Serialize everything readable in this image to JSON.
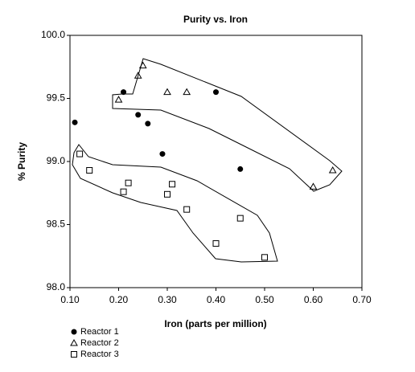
{
  "chart_data": {
    "type": "scatter",
    "title": "Purity vs. Iron",
    "x_label": "Iron (parts per million)",
    "y_label": "% Purity",
    "xlim": [
      0.1,
      0.7
    ],
    "ylim": [
      98.0,
      100.0
    ],
    "xticks": [
      {
        "value": 0.1,
        "label": "0.10"
      },
      {
        "value": 0.2,
        "label": "0.20"
      },
      {
        "value": 0.3,
        "label": "0.30"
      },
      {
        "value": 0.4,
        "label": "0.40"
      },
      {
        "value": 0.5,
        "label": "0.50"
      },
      {
        "value": 0.6,
        "label": "0.60"
      },
      {
        "value": 0.7,
        "label": "0.70"
      }
    ],
    "yticks": [
      {
        "value": 98.0,
        "label": "98.0"
      },
      {
        "value": 98.5,
        "label": "98.5"
      },
      {
        "value": 99.0,
        "label": "99.0"
      },
      {
        "value": 99.5,
        "label": "99.5"
      },
      {
        "value": 100.0,
        "label": "100.0"
      }
    ],
    "grid": false,
    "legend": "bottom-left",
    "series": [
      {
        "name": "Reactor 1",
        "color": "#000000",
        "marker": "circle",
        "x": [
          0.11,
          0.21,
          0.24,
          0.26,
          0.29,
          0.4,
          0.45
        ],
        "values": [
          99.31,
          99.55,
          99.37,
          99.3,
          99.06,
          99.55,
          98.94
        ]
      },
      {
        "name": "Reactor 2",
        "color": "#000000",
        "marker": "triangle",
        "x": [
          0.25,
          0.24,
          0.2,
          0.3,
          0.34,
          0.6,
          0.64
        ],
        "values": [
          99.76,
          99.68,
          99.49,
          99.55,
          99.55,
          98.8,
          98.93
        ]
      },
      {
        "name": "Reactor 3",
        "color": "#000000",
        "marker": "square",
        "x": [
          0.12,
          0.14,
          0.22,
          0.21,
          0.3,
          0.31,
          0.34,
          0.45,
          0.4,
          0.5
        ],
        "values": [
          99.06,
          98.93,
          98.83,
          98.76,
          98.74,
          98.82,
          98.62,
          98.55,
          98.35,
          98.24
        ]
      }
    ]
  }
}
